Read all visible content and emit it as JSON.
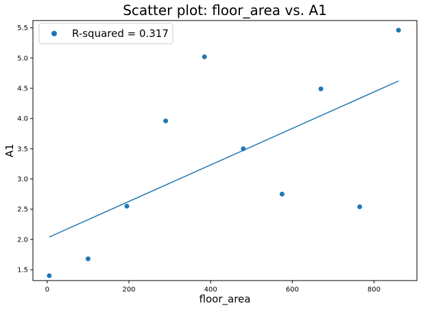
{
  "chart_data": {
    "type": "scatter",
    "title": "Scatter plot: floor_area vs. A1",
    "xlabel": "floor_area",
    "ylabel": "A1",
    "xlim": [
      -35,
      905
    ],
    "ylim": [
      1.32,
      5.62
    ],
    "xticks": [
      0,
      200,
      400,
      600,
      800
    ],
    "yticks": [
      1.5,
      2.0,
      2.5,
      3.0,
      3.5,
      4.0,
      4.5,
      5.0,
      5.5
    ],
    "ytick_labels": [
      "1.5",
      "2.0",
      "2.5",
      "3.0",
      "3.5",
      "4.0",
      "4.5",
      "5.0",
      "5.5"
    ],
    "legend_label": "R-squared = 0.317",
    "legend_position": "upper-left",
    "grid": false,
    "color": "#1f77b4",
    "points": [
      {
        "x": 5,
        "y": 1.4
      },
      {
        "x": 100,
        "y": 1.68
      },
      {
        "x": 195,
        "y": 2.55
      },
      {
        "x": 290,
        "y": 3.96
      },
      {
        "x": 385,
        "y": 5.02
      },
      {
        "x": 480,
        "y": 3.5
      },
      {
        "x": 575,
        "y": 2.75
      },
      {
        "x": 670,
        "y": 4.49
      },
      {
        "x": 765,
        "y": 2.54
      },
      {
        "x": 860,
        "y": 5.46
      }
    ],
    "fit_line": [
      {
        "x": 5,
        "y": 2.04
      },
      {
        "x": 860,
        "y": 4.62
      }
    ]
  }
}
